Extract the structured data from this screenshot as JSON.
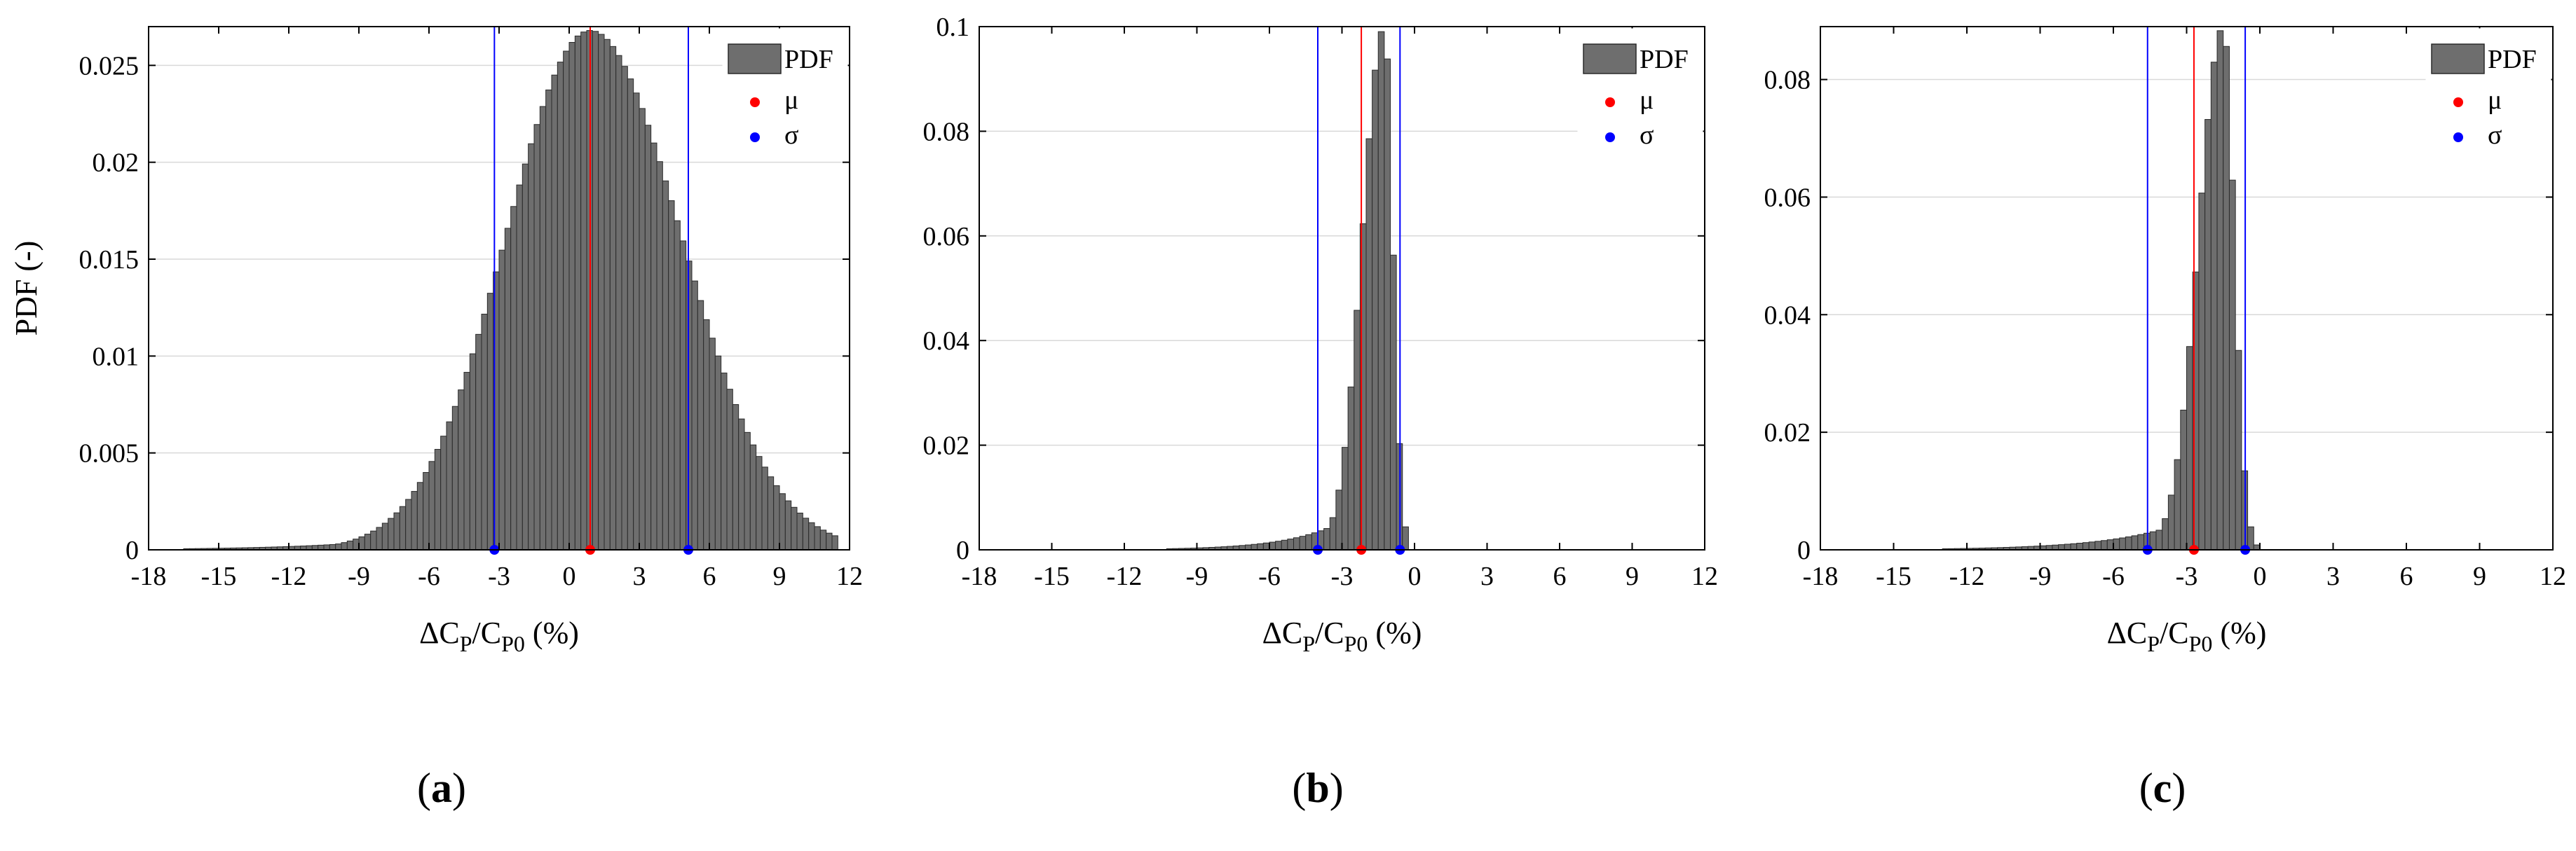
{
  "figure": {
    "captions": [
      "(a)",
      "(b)",
      "(c)"
    ],
    "x_axis_label": "ΔC_P/C_P0 (%)",
    "y_axis_label": "PDF (-)"
  },
  "colors": {
    "bar_fill": "#6e6e6e",
    "bar_edge": "#2a2a2a",
    "mu": "#ff0000",
    "sigma": "#0000ff",
    "grid": "#d9d9d9"
  },
  "chart_data": [
    {
      "type": "bar",
      "caption": "(a)",
      "xlabel": "ΔC_P/C_P0 (%)",
      "ylabel": "PDF (-)",
      "xlim": [
        -18,
        12
      ],
      "ylim": [
        0,
        0.027
      ],
      "xticks": [
        -18,
        -15,
        -12,
        -9,
        -6,
        -3,
        0,
        3,
        6,
        9,
        12
      ],
      "yticks": [
        0,
        0.005,
        0.01,
        0.015,
        0.02,
        0.025
      ],
      "ytick_labels": [
        "0",
        "0.005",
        "0.01",
        "0.015",
        "0.02",
        "0.025"
      ],
      "bin_width": 0.25,
      "grid": "y-major",
      "legend": {
        "placement": "top-right",
        "entries": [
          "PDF",
          "μ",
          "σ"
        ]
      },
      "mu": 0.9,
      "sigma_bounds": [
        -3.2,
        5.1
      ],
      "histogram_shape": {
        "peak_x": 0.9,
        "peak_pdf": 0.0268,
        "sigma_left": 3.6,
        "sigma_right": 3.9,
        "left_tail_scale": 4.0,
        "left_tail_weight": 0.16,
        "x_start": -17.5,
        "x_end": 11.6
      }
    },
    {
      "type": "bar",
      "caption": "(b)",
      "xlabel": "ΔC_P/C_P0 (%)",
      "ylabel": "",
      "xlim": [
        -18,
        12
      ],
      "ylim": [
        0,
        0.1
      ],
      "xticks": [
        -18,
        -15,
        -12,
        -9,
        -6,
        -3,
        0,
        3,
        6,
        9,
        12
      ],
      "yticks": [
        0,
        0.02,
        0.04,
        0.06,
        0.08,
        0.1
      ],
      "ytick_labels": [
        "0",
        "0.02",
        "0.04",
        "0.06",
        "0.08",
        "0.1"
      ],
      "bin_width": 0.25,
      "grid": "y-major",
      "legend": {
        "placement": "top-right",
        "entries": [
          "PDF",
          "μ",
          "σ"
        ]
      },
      "mu": -2.2,
      "sigma_bounds": [
        -4.0,
        -0.6
      ],
      "histogram_shape": {
        "peak_x": -1.25,
        "peak_pdf": 0.1,
        "sigma_left": 0.9,
        "sigma_right": 0.35,
        "left_tail_scale": 2.2,
        "left_tail_weight": 0.12,
        "x_start": -12.5,
        "x_end": -0.2
      }
    },
    {
      "type": "bar",
      "caption": "(c)",
      "xlabel": "ΔC_P/C_P0 (%)",
      "ylabel": "",
      "xlim": [
        -18,
        12
      ],
      "ylim": [
        0,
        0.089
      ],
      "xticks": [
        -18,
        -15,
        -12,
        -9,
        -6,
        -3,
        0,
        3,
        6,
        9,
        12
      ],
      "yticks": [
        0,
        0.02,
        0.04,
        0.06,
        0.08
      ],
      "ytick_labels": [
        "0",
        "0.02",
        "0.04",
        "0.06",
        "0.08"
      ],
      "bin_width": 0.25,
      "grid": "y-major",
      "legend": {
        "placement": "top-right",
        "entries": [
          "PDF",
          "μ",
          "σ"
        ]
      },
      "mu": -2.7,
      "sigma_bounds": [
        -4.6,
        -0.6
      ],
      "histogram_shape": {
        "peak_x": -1.5,
        "peak_pdf": 0.089,
        "sigma_left": 1.0,
        "sigma_right": 0.45,
        "left_tail_scale": 3.0,
        "left_tail_weight": 0.09,
        "x_start": -17.5,
        "x_end": -0.1
      }
    }
  ]
}
